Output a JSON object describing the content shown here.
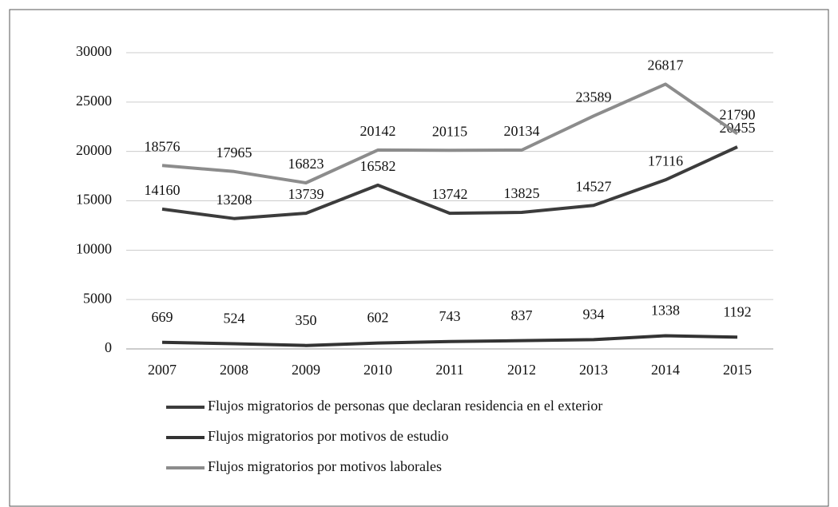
{
  "chart_data": {
    "type": "line",
    "categories": [
      "2007",
      "2008",
      "2009",
      "2010",
      "2011",
      "2012",
      "2013",
      "2014",
      "2015"
    ],
    "series": [
      {
        "name": "Flujos migratorios de personas que declaran residencia en el exterior",
        "color": "#3c3c3c",
        "values": [
          14160,
          13208,
          13739,
          16582,
          13742,
          13825,
          14527,
          17116,
          20455
        ]
      },
      {
        "name": "Flujos migratorios por motivos de estudio",
        "color": "#333333",
        "values": [
          669,
          524,
          350,
          602,
          743,
          837,
          934,
          1338,
          1192
        ]
      },
      {
        "name": "Flujos migratorios por motivos laborales",
        "color": "#8c8c8c",
        "values": [
          18576,
          17965,
          16823,
          20142,
          20115,
          20134,
          23589,
          26817,
          21790
        ]
      }
    ],
    "ylim": [
      0,
      30000
    ],
    "yticks": [
      0,
      5000,
      10000,
      15000,
      20000,
      25000,
      30000
    ],
    "grid": true
  }
}
